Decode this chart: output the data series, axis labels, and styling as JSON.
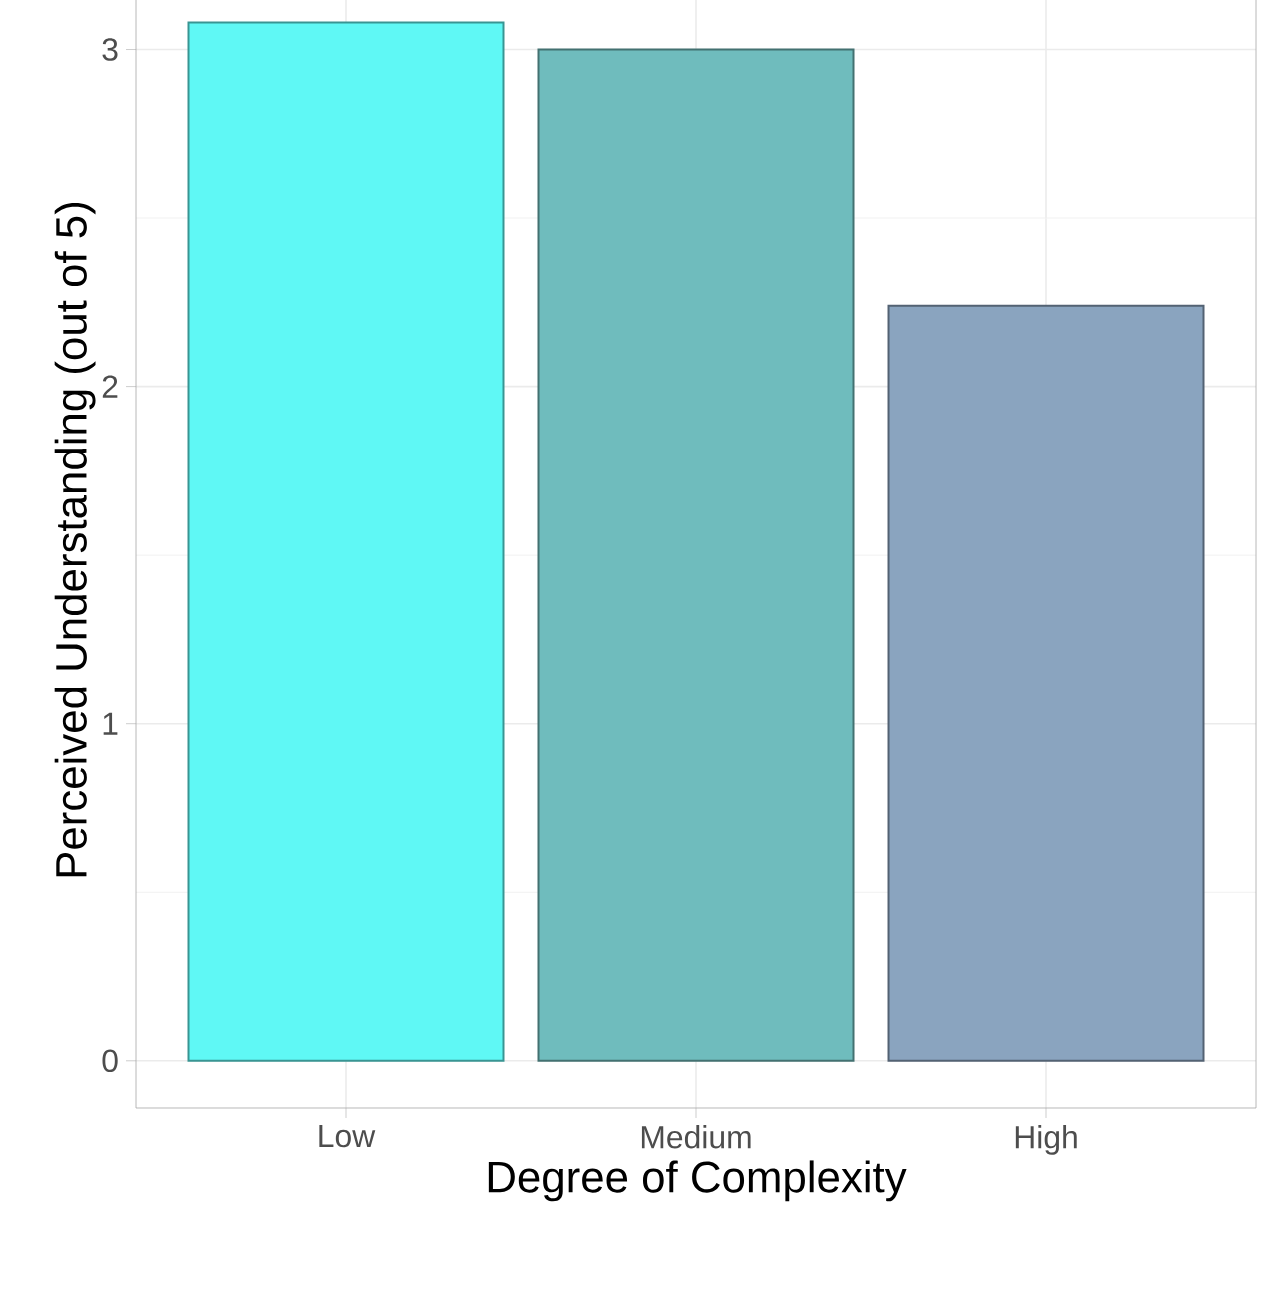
{
  "chart_data": {
    "type": "bar",
    "xlabel": "Degree of Complexity",
    "ylabel": "Perceived Understanding (out of 5)",
    "categories": [
      "Low",
      "Medium",
      "High"
    ],
    "values": [
      3.08,
      3.0,
      2.24
    ],
    "colors": [
      "#5ff8f5",
      "#6fbcbd",
      "#8aa4bf"
    ],
    "ylim": [
      -0.14,
      3.23
    ],
    "yticks": [
      0,
      1,
      2,
      3
    ],
    "grid": true
  }
}
